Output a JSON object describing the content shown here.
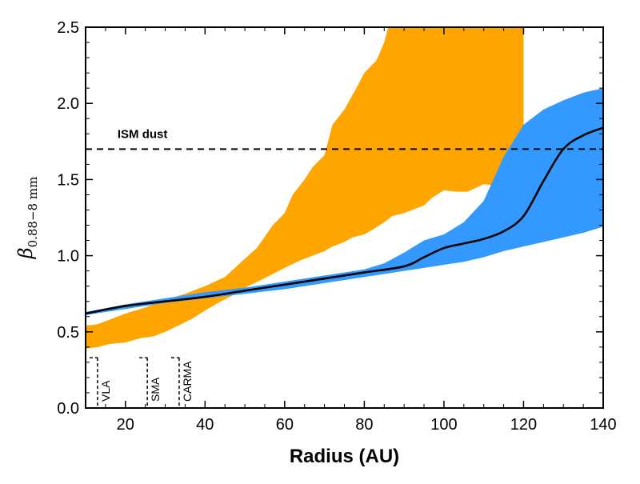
{
  "chart_data": {
    "type": "area",
    "title": "",
    "xlabel": "Radius (AU)",
    "ylabel": {
      "symbol": "β",
      "subscript": "0.88−8 mm"
    },
    "xlim": [
      10,
      140
    ],
    "ylim": [
      0.0,
      2.5
    ],
    "x_ticks": [
      20,
      40,
      60,
      80,
      100,
      120,
      140
    ],
    "y_ticks": [
      0.0,
      0.5,
      1.0,
      1.5,
      2.0,
      2.5
    ],
    "x_tick_labels": [
      "20",
      "40",
      "60",
      "80",
      "100",
      "120",
      "140"
    ],
    "y_tick_labels": [
      "0.0",
      "0.5",
      "1.0",
      "1.5",
      "2.0",
      "2.5"
    ],
    "grid": false,
    "colors": {
      "orange_band": "#FFA500",
      "blue_band": "#3399FF",
      "line": "#000000",
      "ism_line": "#000000"
    },
    "series": [
      {
        "kind": "band",
        "color_key": "orange_band",
        "x_upper": [
          10,
          13,
          16,
          20,
          25,
          30,
          35,
          40,
          45,
          50,
          53,
          57,
          60,
          62,
          65,
          67,
          70,
          72,
          75,
          78,
          80,
          83,
          85,
          86,
          120
        ],
        "upper": [
          0.54,
          0.55,
          0.58,
          0.62,
          0.66,
          0.71,
          0.75,
          0.8,
          0.86,
          0.98,
          1.05,
          1.2,
          1.28,
          1.4,
          1.5,
          1.58,
          1.66,
          1.86,
          1.96,
          2.1,
          2.2,
          2.28,
          2.4,
          2.5,
          2.5
        ],
        "x_lower": [
          120,
          118,
          116,
          113,
          110,
          106,
          103,
          100,
          97,
          95,
          92,
          90,
          87,
          85,
          82,
          80,
          77,
          75,
          72,
          70,
          67,
          64,
          60,
          57,
          54,
          50,
          47,
          44,
          40,
          37,
          34,
          30,
          27,
          24,
          20,
          16,
          13,
          10
        ],
        "lower": [
          1.6,
          1.54,
          1.5,
          1.46,
          1.47,
          1.42,
          1.42,
          1.43,
          1.38,
          1.33,
          1.3,
          1.28,
          1.26,
          1.22,
          1.17,
          1.14,
          1.12,
          1.09,
          1.06,
          1.03,
          1.0,
          0.97,
          0.92,
          0.88,
          0.84,
          0.79,
          0.74,
          0.7,
          0.64,
          0.59,
          0.55,
          0.5,
          0.47,
          0.46,
          0.43,
          0.42,
          0.4,
          0.39
        ]
      },
      {
        "kind": "band",
        "color_key": "blue_band",
        "x": [
          10,
          20,
          30,
          40,
          50,
          60,
          70,
          80,
          85,
          90,
          95,
          100,
          105,
          110,
          115,
          120,
          125,
          130,
          135,
          140
        ],
        "upper": [
          0.63,
          0.68,
          0.72,
          0.76,
          0.79,
          0.83,
          0.87,
          0.91,
          0.95,
          1.02,
          1.1,
          1.14,
          1.22,
          1.36,
          1.65,
          1.86,
          1.96,
          2.02,
          2.07,
          2.1
        ],
        "lower": [
          0.61,
          0.65,
          0.69,
          0.72,
          0.75,
          0.78,
          0.82,
          0.86,
          0.88,
          0.9,
          0.92,
          0.94,
          0.96,
          0.99,
          1.03,
          1.06,
          1.09,
          1.12,
          1.15,
          1.19
        ]
      },
      {
        "kind": "line",
        "color_key": "line",
        "x": [
          10,
          20,
          30,
          40,
          50,
          60,
          70,
          80,
          90,
          95,
          100,
          105,
          110,
          115,
          120,
          125,
          130,
          135,
          140
        ],
        "y": [
          0.62,
          0.67,
          0.7,
          0.73,
          0.77,
          0.81,
          0.85,
          0.89,
          0.93,
          0.99,
          1.05,
          1.08,
          1.11,
          1.16,
          1.26,
          1.49,
          1.7,
          1.79,
          1.84
        ]
      }
    ],
    "annotations": [
      {
        "kind": "hline",
        "y": 1.7,
        "x_range": [
          10,
          140
        ],
        "label": "ISM dust",
        "label_x": 16,
        "label_y": 1.74
      }
    ],
    "beam_markers": [
      {
        "label": "VLA",
        "x": 13.0,
        "y_top": 0.33
      },
      {
        "label": "SMA",
        "x": 25.5,
        "y_top": 0.33
      },
      {
        "label": "CARMA",
        "x": 33.5,
        "y_top": 0.33
      }
    ]
  }
}
